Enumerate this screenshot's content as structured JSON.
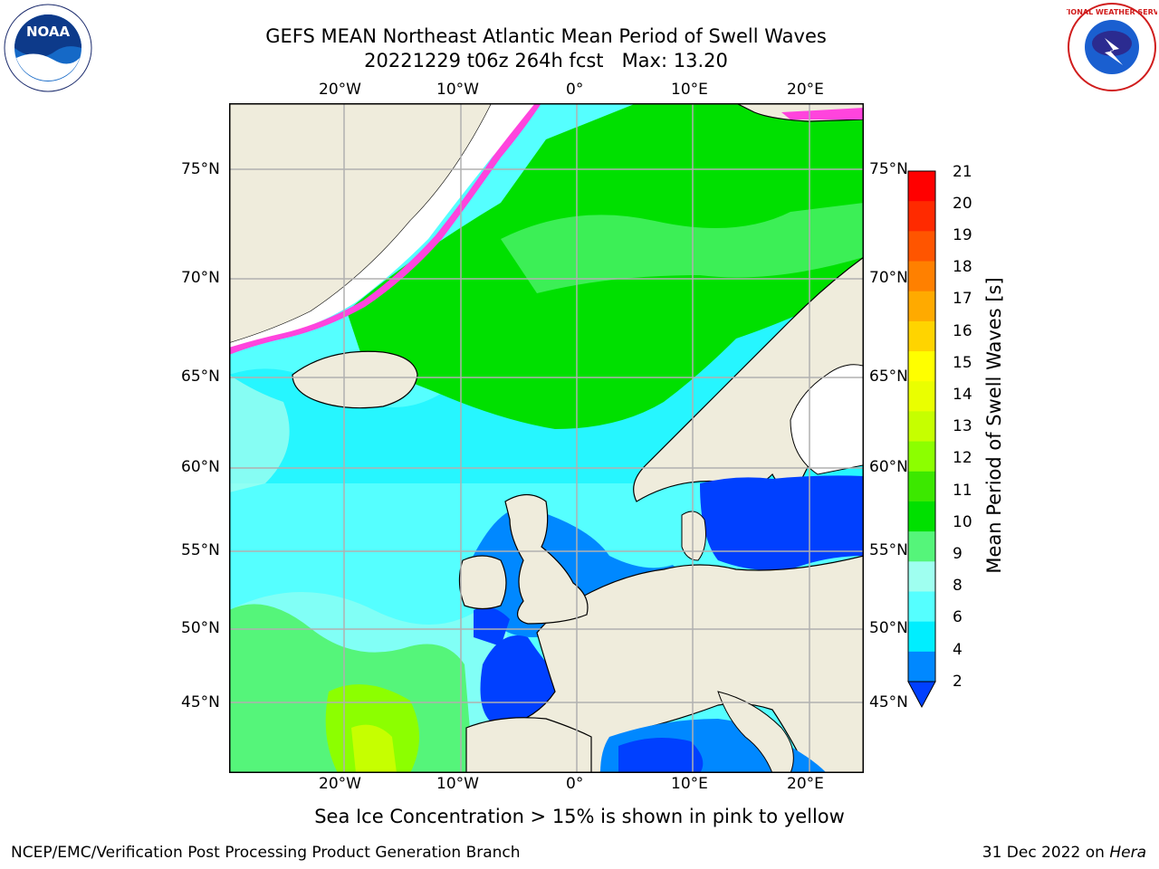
{
  "header": {
    "title_line1": "GEFS MEAN Northeast Atlantic Mean Period of Swell Waves",
    "title_line2": "20221229 t06z 264h fcst   Max: 13.20"
  },
  "map": {
    "lon_ticks_top": [
      "20°W",
      "10°W",
      "0°",
      "10°E",
      "20°E"
    ],
    "lon_ticks_bottom": [
      "20°W",
      "10°W",
      "0°",
      "10°E",
      "20°E"
    ],
    "lat_ticks_left": [
      "75°N",
      "70°N",
      "65°N",
      "60°N",
      "55°N",
      "50°N",
      "45°N"
    ],
    "lat_ticks_right": [
      "75°N",
      "70°N",
      "65°N",
      "60°N",
      "55°N",
      "50°N",
      "45°N"
    ],
    "colors": {
      "land": "#efecdc",
      "ice": "#ffffff",
      "gridline": "#b0b0b0",
      "coast": "#000000"
    }
  },
  "colorbar": {
    "label": "Mean Period of Swell Waves [s]",
    "ticks": [
      "21",
      "20",
      "19",
      "18",
      "17",
      "16",
      "15",
      "14",
      "13",
      "12",
      "11",
      "10",
      "9",
      "8",
      "6",
      "4",
      "2"
    ],
    "colors_top_to_bottom": [
      "#ff0000",
      "#ff2a00",
      "#ff5500",
      "#ff8000",
      "#ffaa00",
      "#ffd400",
      "#ffff00",
      "#eaff00",
      "#c6ff00",
      "#8cff00",
      "#3ce800",
      "#00e000",
      "#55f57a",
      "#9ffff0",
      "#55ffff",
      "#00eeff",
      "#0088ff",
      "#0040ff"
    ]
  },
  "caption": "Sea Ice Concentration > 15% is shown in pink to yellow",
  "footer": {
    "left": "NCEP/EMC/Verification Post Processing Product Generation Branch",
    "right_prefix": "31 Dec 2022 on ",
    "right_host": "Hera"
  },
  "logos": {
    "left": "NOAA",
    "right": "NATIONAL WEATHER SERVICE"
  }
}
